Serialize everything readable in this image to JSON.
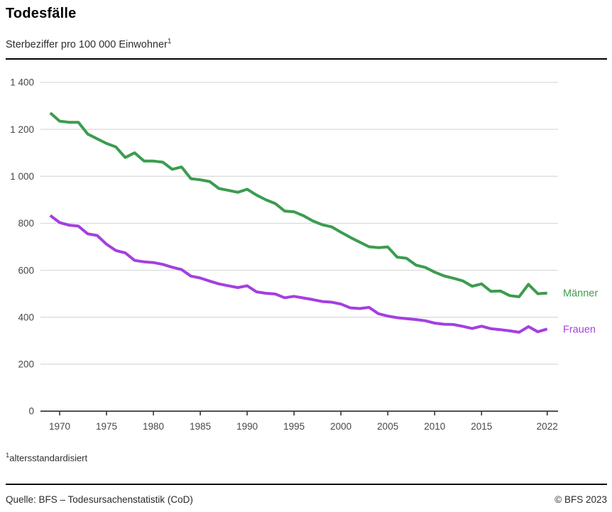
{
  "header": {
    "title": "Todesfälle",
    "subtitle": "Sterbeziffer pro 100 000 Einwohner",
    "subtitle_superscript": "1"
  },
  "chart_data": {
    "type": "line",
    "title": "Todesfälle",
    "subtitle": "Sterbeziffer pro 100 000 Einwohner (altersstandardisiert)",
    "xlabel": "",
    "ylabel": "",
    "ylim": [
      0,
      1400
    ],
    "ytick_interval": 200,
    "yticks": [
      0,
      200,
      400,
      600,
      800,
      1000,
      1200,
      1400
    ],
    "ytick_labels": [
      "0",
      "200",
      "400",
      "600",
      "800",
      "1 000",
      "1 200",
      "1 400"
    ],
    "xticks": [
      1970,
      1975,
      1980,
      1985,
      1990,
      1995,
      2000,
      2005,
      2010,
      2015,
      2022
    ],
    "xtick_labels": [
      "1970",
      "1975",
      "1980",
      "1985",
      "1990",
      "1995",
      "2000",
      "2005",
      "2010",
      "2015",
      "2022"
    ],
    "grid": "horizontal",
    "legend_position": "right-end-of-lines",
    "x": [
      1969,
      1970,
      1971,
      1972,
      1973,
      1974,
      1975,
      1976,
      1977,
      1978,
      1979,
      1980,
      1981,
      1982,
      1983,
      1984,
      1985,
      1986,
      1987,
      1988,
      1989,
      1990,
      1991,
      1992,
      1993,
      1994,
      1995,
      1996,
      1997,
      1998,
      1999,
      2000,
      2001,
      2002,
      2003,
      2004,
      2005,
      2006,
      2007,
      2008,
      2009,
      2010,
      2011,
      2012,
      2013,
      2014,
      2015,
      2016,
      2017,
      2018,
      2019,
      2020,
      2021,
      2022
    ],
    "series": [
      {
        "name": "Männer",
        "color": "#3b9c4f",
        "values": [
          1270,
          1235,
          1230,
          1230,
          1180,
          1160,
          1140,
          1125,
          1080,
          1100,
          1065,
          1065,
          1060,
          1030,
          1040,
          990,
          985,
          978,
          948,
          940,
          932,
          945,
          920,
          900,
          884,
          852,
          849,
          832,
          810,
          794,
          785,
          762,
          740,
          720,
          700,
          696,
          699,
          656,
          651,
          622,
          612,
          592,
          576,
          566,
          555,
          532,
          542,
          510,
          512,
          492,
          487,
          540,
          500,
          503
        ]
      },
      {
        "name": "Frauen",
        "color": "#a43fe0",
        "values": [
          833,
          803,
          792,
          788,
          755,
          748,
          711,
          684,
          674,
          642,
          636,
          633,
          625,
          613,
          603,
          575,
          567,
          554,
          542,
          534,
          526,
          534,
          508,
          502,
          499,
          483,
          489,
          482,
          475,
          467,
          464,
          456,
          440,
          437,
          442,
          415,
          405,
          398,
          394,
          390,
          385,
          375,
          370,
          369,
          361,
          352,
          362,
          351,
          347,
          342,
          336,
          360,
          338,
          350
        ]
      }
    ],
    "colors": {
      "grid": "#d9d9d9",
      "axis": "#1a1a1a",
      "tick_text": "#474747"
    }
  },
  "footnote": {
    "marker": "1",
    "text": "altersstandardisiert"
  },
  "footer": {
    "source": "Quelle: BFS – Todesursachenstatistik (CoD)",
    "copyright": "© BFS 2023"
  }
}
